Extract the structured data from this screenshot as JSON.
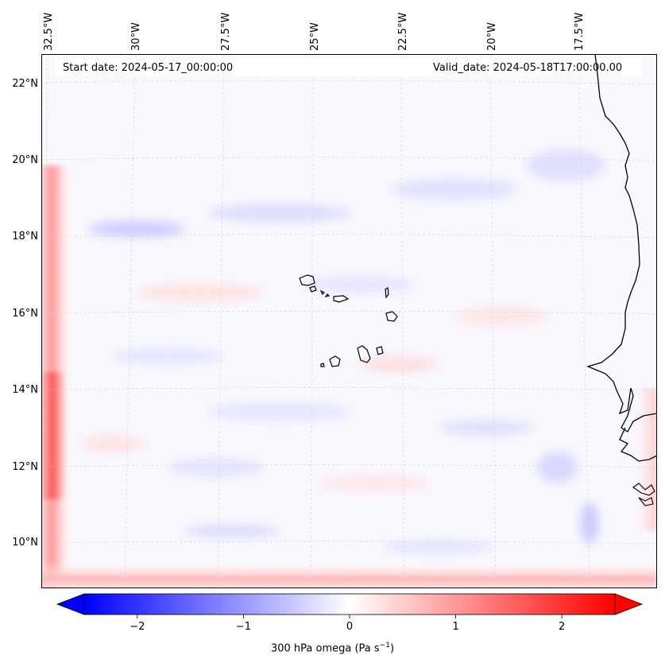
{
  "map": {
    "start_date": "Start date: 2024-05-17_00:00:00",
    "valid_date": "Valid_date: 2024-05-18T17:00:00.00",
    "lon_labels": [
      "32.5°W",
      "30°W",
      "27.5°W",
      "25°W",
      "22.5°W",
      "20°W",
      "17.5°W"
    ],
    "lat_labels": [
      "22°N",
      "20°N",
      "18°N",
      "16°N",
      "14°N",
      "12°N",
      "10°N"
    ],
    "colors": {
      "negative": "#0000ff",
      "zero": "#ffffff",
      "positive": "#ff0000",
      "coastline": "#000000",
      "grid": "#bbbbbb"
    }
  },
  "colorbar": {
    "ticks": [
      "−2",
      "−1",
      "0",
      "1",
      "2"
    ],
    "tick_values": [
      -2,
      -1,
      0,
      1,
      2
    ],
    "range": [
      -2.5,
      2.5
    ],
    "label": "300 hPa omega (Pa s",
    "label_exp": "−1",
    "label_end": ")"
  }
}
